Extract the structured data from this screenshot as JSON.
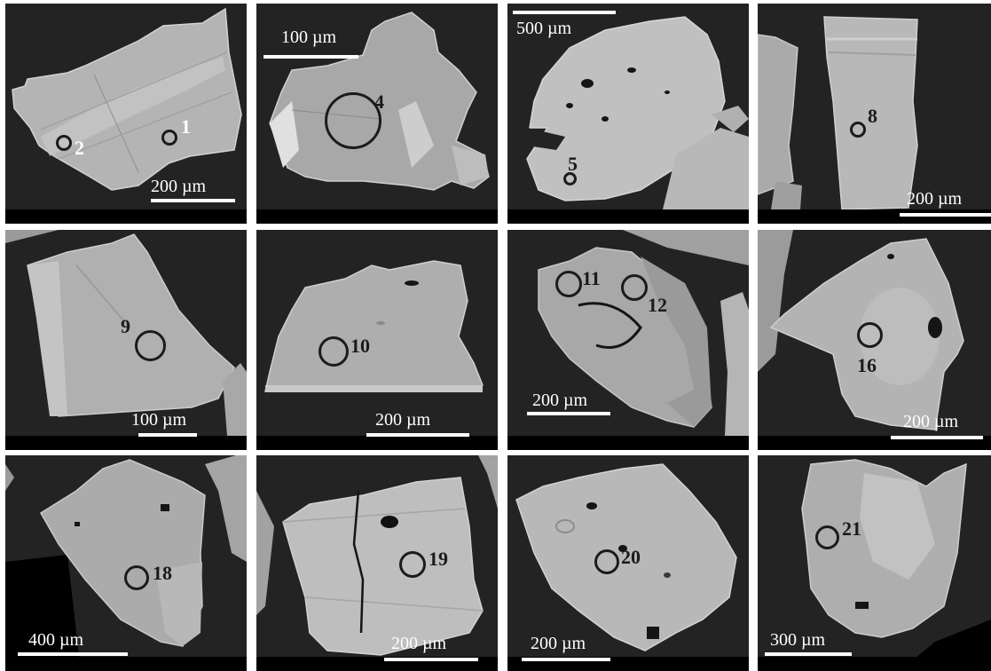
{
  "figure": {
    "panels": [
      {
        "id": "p1",
        "scale_bar": "200 µm",
        "spots": [
          "1",
          "2"
        ]
      },
      {
        "id": "p2",
        "scale_bar": "100 µm",
        "spots": [
          "4"
        ]
      },
      {
        "id": "p3",
        "scale_bar": "500 µm",
        "spots": [
          "5"
        ]
      },
      {
        "id": "p4",
        "scale_bar": "200 µm",
        "spots": [
          "8"
        ]
      },
      {
        "id": "p5",
        "scale_bar": "100 µm",
        "spots": [
          "9"
        ]
      },
      {
        "id": "p6",
        "scale_bar": "200 µm",
        "spots": [
          "10"
        ]
      },
      {
        "id": "p7",
        "scale_bar": "200 µm",
        "spots": [
          "11",
          "12"
        ]
      },
      {
        "id": "p8",
        "scale_bar": "200 µm",
        "spots": [
          "16"
        ]
      },
      {
        "id": "p9",
        "scale_bar": "400 µm",
        "spots": [
          "18"
        ]
      },
      {
        "id": "p10",
        "scale_bar": "200 µm",
        "spots": [
          "19"
        ]
      },
      {
        "id": "p11",
        "scale_bar": "200 µm",
        "spots": [
          "20"
        ]
      },
      {
        "id": "p12",
        "scale_bar": "300 µm",
        "spots": [
          "21"
        ]
      }
    ]
  }
}
